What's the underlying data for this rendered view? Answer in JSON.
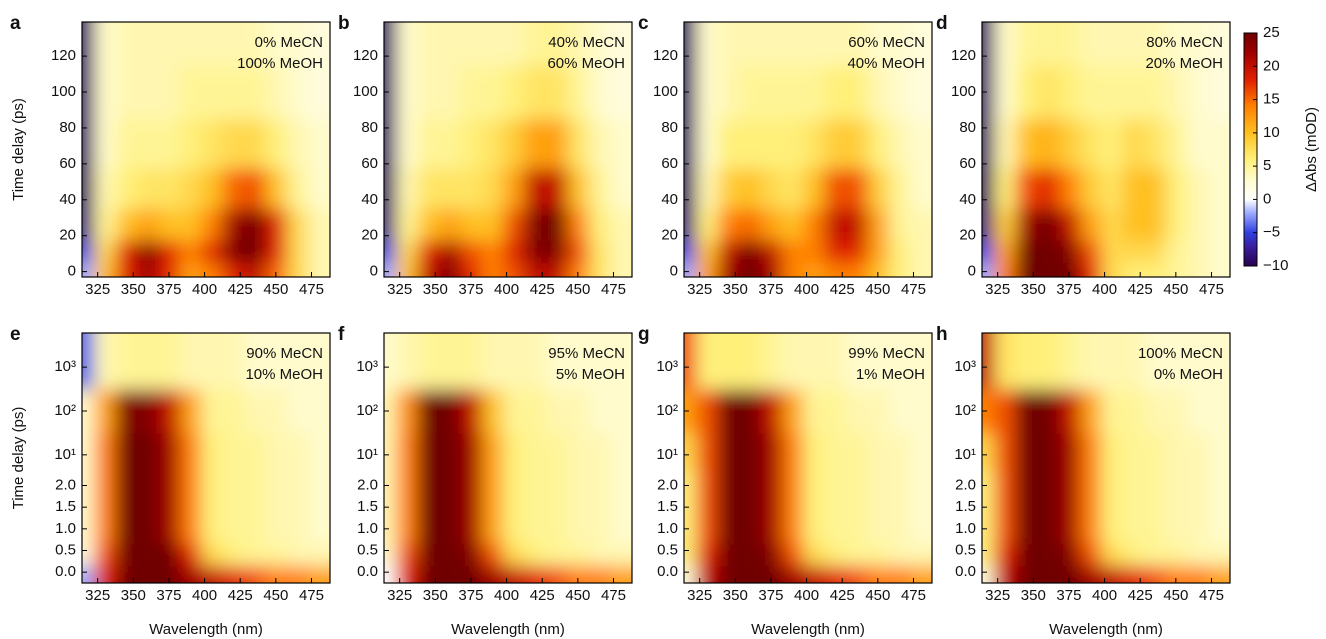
{
  "chart_data": [
    {
      "type": "heatmap",
      "label": "a",
      "annotations": [
        "0% MeCN",
        "100% MeOH"
      ],
      "ylabel": "Time delay (ps)",
      "x": [
        315,
        330,
        345,
        360,
        375,
        390,
        405,
        420,
        435,
        450,
        465,
        480
      ],
      "y": [
        0,
        10,
        25,
        45,
        70,
        100,
        130
      ],
      "z": [
        [
          -2,
          10,
          18,
          22,
          18,
          12,
          14,
          18,
          20,
          15,
          8,
          4
        ],
        [
          -5,
          8,
          18,
          24,
          18,
          14,
          18,
          24,
          25,
          18,
          8,
          4
        ],
        [
          -8,
          5,
          10,
          12,
          10,
          10,
          14,
          22,
          25,
          18,
          8,
          4
        ],
        [
          -9,
          4,
          6,
          7,
          7,
          8,
          10,
          15,
          16,
          10,
          5,
          3
        ],
        [
          -9,
          3,
          5,
          5,
          5,
          6,
          7,
          8,
          8,
          6,
          4,
          3
        ],
        [
          -9,
          3,
          4,
          4,
          4,
          5,
          5,
          5,
          5,
          4,
          3,
          2
        ],
        [
          -9,
          3,
          4,
          4,
          4,
          4,
          4,
          4,
          4,
          3,
          3,
          2
        ]
      ],
      "xlim": [
        314,
        488
      ],
      "ylim": [
        -3,
        139
      ],
      "xticks": [
        325,
        350,
        375,
        400,
        425,
        450,
        475
      ],
      "yticks": [
        0,
        20,
        40,
        60,
        80,
        100,
        120
      ]
    },
    {
      "type": "heatmap",
      "label": "b",
      "annotations": [
        "40% MeCN",
        "60% MeOH"
      ],
      "x": [
        315,
        330,
        345,
        360,
        375,
        390,
        405,
        420,
        435,
        450,
        465,
        480
      ],
      "y": [
        0,
        10,
        25,
        45,
        70,
        100,
        130
      ],
      "z": [
        [
          -2,
          10,
          20,
          24,
          18,
          14,
          16,
          20,
          20,
          14,
          7,
          4
        ],
        [
          -5,
          8,
          18,
          22,
          16,
          14,
          18,
          24,
          24,
          16,
          7,
          4
        ],
        [
          -8,
          5,
          10,
          12,
          10,
          10,
          16,
          24,
          25,
          14,
          6,
          4
        ],
        [
          -9,
          4,
          7,
          7,
          7,
          8,
          12,
          20,
          20,
          10,
          5,
          3
        ],
        [
          -9,
          3,
          5,
          5,
          6,
          7,
          9,
          12,
          12,
          7,
          4,
          3
        ],
        [
          -9,
          3,
          4,
          4,
          5,
          5,
          6,
          7,
          7,
          5,
          3,
          2
        ],
        [
          -9,
          3,
          4,
          4,
          4,
          4,
          4,
          5,
          5,
          4,
          3,
          2
        ]
      ],
      "xlim": [
        314,
        488
      ],
      "ylim": [
        -3,
        139
      ],
      "xticks": [
        325,
        350,
        375,
        400,
        425,
        450,
        475
      ],
      "yticks": [
        0,
        20,
        40,
        60,
        80,
        100,
        120
      ]
    },
    {
      "type": "heatmap",
      "label": "c",
      "annotations": [
        "60% MeCN",
        "40% MeOH"
      ],
      "x": [
        315,
        330,
        345,
        360,
        375,
        390,
        405,
        420,
        435,
        450,
        465,
        480
      ],
      "y": [
        0,
        10,
        25,
        45,
        70,
        100,
        130
      ],
      "z": [
        [
          -2,
          12,
          22,
          25,
          22,
          14,
          12,
          14,
          14,
          10,
          6,
          4
        ],
        [
          -5,
          10,
          20,
          25,
          20,
          14,
          14,
          18,
          18,
          12,
          6,
          4
        ],
        [
          -8,
          6,
          14,
          15,
          12,
          10,
          14,
          20,
          20,
          12,
          5,
          4
        ],
        [
          -9,
          4,
          9,
          10,
          8,
          7,
          10,
          16,
          16,
          9,
          5,
          3
        ],
        [
          -9,
          3,
          6,
          6,
          6,
          6,
          7,
          9,
          9,
          6,
          4,
          3
        ],
        [
          -9,
          3,
          4,
          5,
          5,
          5,
          5,
          6,
          6,
          4,
          3,
          2
        ],
        [
          -9,
          3,
          4,
          4,
          4,
          4,
          4,
          4,
          4,
          3,
          3,
          2
        ]
      ],
      "xlim": [
        314,
        488
      ],
      "ylim": [
        -3,
        139
      ],
      "xticks": [
        325,
        350,
        375,
        400,
        425,
        450,
        475
      ],
      "yticks": [
        0,
        20,
        40,
        60,
        80,
        100,
        120
      ]
    },
    {
      "type": "heatmap",
      "label": "d",
      "annotations": [
        "80% MeCN",
        "20% MeOH"
      ],
      "x": [
        315,
        330,
        345,
        360,
        375,
        390,
        405,
        420,
        435,
        450,
        465,
        480
      ],
      "y": [
        0,
        10,
        25,
        45,
        70,
        100,
        130
      ],
      "z": [
        [
          -2,
          14,
          25,
          25,
          25,
          18,
          8,
          6,
          6,
          5,
          4,
          3
        ],
        [
          -5,
          12,
          25,
          25,
          24,
          16,
          8,
          8,
          8,
          5,
          4,
          3
        ],
        [
          -8,
          9,
          22,
          25,
          20,
          12,
          8,
          10,
          10,
          6,
          4,
          3
        ],
        [
          -9,
          6,
          16,
          18,
          14,
          9,
          7,
          10,
          10,
          6,
          4,
          3
        ],
        [
          -9,
          4,
          10,
          11,
          9,
          7,
          6,
          8,
          7,
          5,
          3,
          3
        ],
        [
          -9,
          3,
          6,
          7,
          6,
          5,
          5,
          5,
          5,
          4,
          3,
          2
        ],
        [
          -9,
          3,
          5,
          5,
          5,
          4,
          4,
          4,
          4,
          3,
          3,
          2
        ]
      ],
      "xlim": [
        314,
        488
      ],
      "ylim": [
        -3,
        139
      ],
      "xticks": [
        325,
        350,
        375,
        400,
        425,
        450,
        475
      ],
      "yticks": [
        0,
        20,
        40,
        60,
        80,
        100,
        120
      ]
    },
    {
      "type": "heatmap",
      "label": "e",
      "annotations": [
        "90% MeCN",
        "10% MeOH"
      ],
      "ylabel": "Time delay (ps)",
      "xlabel": "Wavelength (nm)",
      "x": [
        315,
        330,
        345,
        360,
        375,
        390,
        405,
        420,
        435,
        450,
        465,
        480
      ],
      "y": [
        0,
        0.3,
        1,
        2,
        10,
        100,
        1000
      ],
      "z": [
        [
          -2,
          18,
          25,
          25,
          25,
          22,
          20,
          18,
          16,
          14,
          14,
          12
        ],
        [
          2,
          16,
          25,
          25,
          25,
          18,
          8,
          6,
          5,
          5,
          4,
          4
        ],
        [
          3,
          14,
          25,
          25,
          22,
          14,
          6,
          5,
          5,
          4,
          4,
          3
        ],
        [
          3,
          14,
          25,
          25,
          22,
          14,
          6,
          5,
          5,
          4,
          4,
          3
        ],
        [
          3,
          14,
          25,
          25,
          22,
          14,
          6,
          5,
          5,
          4,
          4,
          3
        ],
        [
          3,
          12,
          24,
          24,
          20,
          12,
          5,
          5,
          4,
          4,
          3,
          3
        ],
        [
          -4,
          4,
          5,
          5,
          5,
          4,
          4,
          4,
          3,
          3,
          3,
          3
        ]
      ],
      "xlim": [
        314,
        488
      ],
      "ylim": [
        -0.25,
        6000
      ],
      "yscale": "linear-log",
      "ylinthresh": 2,
      "xticks": [
        325,
        350,
        375,
        400,
        425,
        450,
        475
      ],
      "yticks": [
        {
          "value": 0,
          "label": "0.0"
        },
        {
          "value": 0.5,
          "label": "0.5"
        },
        {
          "value": 1,
          "label": "1.0"
        },
        {
          "value": 1.5,
          "label": "1.5"
        },
        {
          "value": 2,
          "label": "2.0"
        },
        {
          "value": 10,
          "label": "10¹"
        },
        {
          "value": 100,
          "label": "10²"
        },
        {
          "value": 1000,
          "label": "10³"
        }
      ]
    },
    {
      "type": "heatmap",
      "label": "f",
      "annotations": [
        "95% MeCN",
        "5% MeOH"
      ],
      "xlabel": "Wavelength (nm)",
      "x": [
        315,
        330,
        345,
        360,
        375,
        390,
        405,
        420,
        435,
        450,
        465,
        480
      ],
      "y": [
        0,
        0.3,
        1,
        2,
        10,
        100,
        1000
      ],
      "z": [
        [
          0,
          18,
          25,
          25,
          25,
          22,
          20,
          18,
          16,
          14,
          14,
          12
        ],
        [
          3,
          16,
          25,
          25,
          24,
          16,
          8,
          6,
          5,
          5,
          4,
          4
        ],
        [
          4,
          14,
          25,
          25,
          22,
          12,
          6,
          5,
          5,
          4,
          4,
          3
        ],
        [
          4,
          14,
          25,
          25,
          22,
          12,
          6,
          5,
          5,
          4,
          4,
          3
        ],
        [
          4,
          14,
          25,
          25,
          22,
          12,
          6,
          5,
          5,
          4,
          4,
          3
        ],
        [
          4,
          13,
          25,
          25,
          20,
          10,
          5,
          5,
          4,
          4,
          3,
          3
        ],
        [
          3,
          4,
          5,
          5,
          5,
          4,
          4,
          4,
          3,
          3,
          3,
          3
        ]
      ],
      "xlim": [
        314,
        488
      ],
      "ylim": [
        -0.25,
        6000
      ],
      "yscale": "linear-log",
      "ylinthresh": 2,
      "xticks": [
        325,
        350,
        375,
        400,
        425,
        450,
        475
      ],
      "yticks": [
        {
          "value": 0,
          "label": "0.0"
        },
        {
          "value": 0.5,
          "label": "0.5"
        },
        {
          "value": 1,
          "label": "1.0"
        },
        {
          "value": 1.5,
          "label": "1.5"
        },
        {
          "value": 2,
          "label": "2.0"
        },
        {
          "value": 10,
          "label": "10¹"
        },
        {
          "value": 100,
          "label": "10²"
        },
        {
          "value": 1000,
          "label": "10³"
        }
      ]
    },
    {
      "type": "heatmap",
      "label": "g",
      "annotations": [
        "99% MeCN",
        "1% MeOH"
      ],
      "xlabel": "Wavelength (nm)",
      "x": [
        315,
        330,
        345,
        360,
        375,
        390,
        405,
        420,
        435,
        450,
        465,
        480
      ],
      "y": [
        0,
        0.3,
        1,
        2,
        10,
        100,
        1000
      ],
      "z": [
        [
          2,
          20,
          25,
          25,
          25,
          22,
          20,
          18,
          16,
          14,
          14,
          12
        ],
        [
          6,
          18,
          25,
          25,
          24,
          16,
          8,
          6,
          5,
          5,
          4,
          4
        ],
        [
          6,
          16,
          25,
          25,
          22,
          14,
          6,
          5,
          5,
          4,
          4,
          3
        ],
        [
          6,
          16,
          25,
          25,
          22,
          14,
          6,
          5,
          5,
          4,
          4,
          3
        ],
        [
          8,
          16,
          25,
          25,
          22,
          14,
          6,
          5,
          5,
          4,
          4,
          3
        ],
        [
          12,
          16,
          25,
          25,
          20,
          12,
          5,
          5,
          4,
          4,
          3,
          3
        ],
        [
          16,
          6,
          6,
          6,
          5,
          4,
          4,
          4,
          3,
          3,
          3,
          3
        ]
      ],
      "xlim": [
        314,
        488
      ],
      "ylim": [
        -0.25,
        6000
      ],
      "yscale": "linear-log",
      "ylinthresh": 2,
      "xticks": [
        325,
        350,
        375,
        400,
        425,
        450,
        475
      ],
      "yticks": [
        {
          "value": 0,
          "label": "0.0"
        },
        {
          "value": 0.5,
          "label": "0.5"
        },
        {
          "value": 1,
          "label": "1.0"
        },
        {
          "value": 1.5,
          "label": "1.5"
        },
        {
          "value": 2,
          "label": "2.0"
        },
        {
          "value": 10,
          "label": "10¹"
        },
        {
          "value": 100,
          "label": "10²"
        },
        {
          "value": 1000,
          "label": "10³"
        }
      ]
    },
    {
      "type": "heatmap",
      "label": "h",
      "annotations": [
        "100% MeCN",
        "0% MeOH"
      ],
      "xlabel": "Wavelength (nm)",
      "x": [
        315,
        330,
        345,
        360,
        375,
        390,
        405,
        420,
        435,
        450,
        465,
        480
      ],
      "y": [
        0,
        0.3,
        1,
        2,
        10,
        100,
        1000
      ],
      "z": [
        [
          2,
          20,
          25,
          25,
          25,
          22,
          20,
          18,
          16,
          14,
          14,
          12
        ],
        [
          6,
          18,
          25,
          25,
          24,
          16,
          8,
          6,
          5,
          5,
          4,
          4
        ],
        [
          6,
          16,
          25,
          25,
          22,
          14,
          6,
          5,
          5,
          4,
          4,
          3
        ],
        [
          6,
          16,
          25,
          25,
          22,
          14,
          6,
          5,
          5,
          4,
          4,
          3
        ],
        [
          8,
          16,
          25,
          25,
          22,
          14,
          6,
          5,
          5,
          4,
          4,
          3
        ],
        [
          14,
          16,
          25,
          25,
          20,
          12,
          5,
          5,
          4,
          4,
          3,
          3
        ],
        [
          20,
          7,
          6,
          6,
          5,
          4,
          4,
          4,
          3,
          3,
          3,
          3
        ]
      ],
      "xlim": [
        314,
        488
      ],
      "ylim": [
        -0.25,
        6000
      ],
      "yscale": "linear-log",
      "ylinthresh": 2,
      "xticks": [
        325,
        350,
        375,
        400,
        425,
        450,
        475
      ],
      "yticks": [
        {
          "value": 0,
          "label": "0.0"
        },
        {
          "value": 0.5,
          "label": "0.5"
        },
        {
          "value": 1,
          "label": "1.0"
        },
        {
          "value": 1.5,
          "label": "1.5"
        },
        {
          "value": 2,
          "label": "2.0"
        },
        {
          "value": 10,
          "label": "10¹"
        },
        {
          "value": 100,
          "label": "10²"
        },
        {
          "value": 1000,
          "label": "10³"
        }
      ]
    },
    {
      "type": "colorbar",
      "label": "ΔAbs (mOD)",
      "lim": [
        -10,
        25
      ],
      "ticks": [
        25,
        20,
        15,
        10,
        5,
        0,
        {
          "value": -5,
          "label": "−5"
        },
        {
          "value": -10,
          "label": "−10"
        }
      ],
      "colormap": [
        {
          "value": -10,
          "color": "#2a0050"
        },
        {
          "value": -7,
          "color": "#3a1fa0"
        },
        {
          "value": -5,
          "color": "#3040e0"
        },
        {
          "value": -2,
          "color": "#a0acff"
        },
        {
          "value": 0,
          "color": "#ffffff"
        },
        {
          "value": 3,
          "color": "#fffbcc"
        },
        {
          "value": 6,
          "color": "#fff07a"
        },
        {
          "value": 10,
          "color": "#ffc020"
        },
        {
          "value": 14,
          "color": "#ff8000"
        },
        {
          "value": 18,
          "color": "#e02000"
        },
        {
          "value": 22,
          "color": "#a00000"
        },
        {
          "value": 25,
          "color": "#700000"
        }
      ]
    }
  ]
}
